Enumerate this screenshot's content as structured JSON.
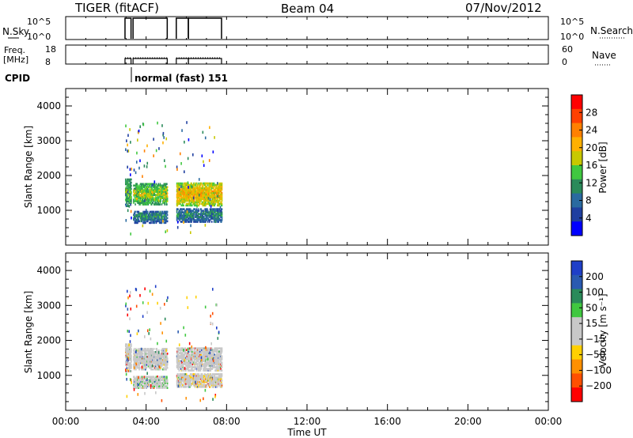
{
  "header": {
    "title": "TIGER (fitACF)",
    "beam": "Beam 04",
    "date": "07/Nov/2012"
  },
  "strips": {
    "nsky_label": "N.Sky",
    "nsky_ticks": [
      "10^5",
      "10^0"
    ],
    "nsearch_label": "N.Search",
    "freq_label_1": "Freq.",
    "freq_label_2": "[MHz]",
    "freq_ticks": [
      "18",
      "8"
    ],
    "nave_label": "Nave",
    "nave_ticks": [
      "60",
      "0"
    ],
    "cpid_label": "CPID",
    "cpid_text": "normal (fast) 151",
    "active_intervals_hours": [
      [
        2.95,
        3.25
      ],
      [
        3.35,
        5.05
      ],
      [
        5.5,
        6.1
      ],
      [
        6.1,
        7.75
      ]
    ]
  },
  "colorbars": {
    "power": {
      "label": "Power [dB]",
      "ticks": [
        "28",
        "24",
        "20",
        "16",
        "12",
        "8",
        "4"
      ],
      "colors": [
        "#ff0000",
        "#ff4000",
        "#ff8000",
        "#ffb000",
        "#c8c800",
        "#40c840",
        "#2a8a5a",
        "#2a6aa0",
        "#1f3fa0",
        "#0000ff"
      ]
    },
    "velocity": {
      "label": "Velocity [m s⁻¹]",
      "ticks": [
        "200",
        "100",
        "50",
        "15",
        "−15",
        "−50",
        "−100",
        "−200"
      ],
      "colors": [
        "#1f3fc8",
        "#2a5ab0",
        "#2a8a5a",
        "#40c840",
        "#c8c8c8",
        "#c8c8c8",
        "#ffd000",
        "#ff9000",
        "#ff5000",
        "#ff0000"
      ]
    }
  },
  "chart_data": [
    {
      "type": "heatmap",
      "title": "",
      "xlabel": "Time UT",
      "ylabel": "Slant Range [km]",
      "xlim_hours": [
        0,
        24
      ],
      "ylim": [
        0,
        4500
      ],
      "x_tick_labels": [
        "00:00",
        "04:00",
        "08:00",
        "12:00",
        "16:00",
        "20:00",
        "00:00"
      ],
      "y_tick_labels": [
        "1000",
        "2000",
        "3000",
        "4000"
      ],
      "variable": "Power [dB]",
      "scatter_bands": [
        {
          "t_start": 2.95,
          "t_end": 3.25,
          "r_center": 1550,
          "r_half": 400,
          "value": 12
        },
        {
          "t_start": 3.35,
          "t_end": 5.05,
          "r_center": 1500,
          "r_half": 300,
          "value": 14
        },
        {
          "t_start": 3.35,
          "t_end": 5.05,
          "r_center": 850,
          "r_half": 180,
          "value": 8
        },
        {
          "t_start": 5.5,
          "t_end": 7.75,
          "r_center": 1500,
          "r_half": 330,
          "value": 18
        },
        {
          "t_start": 5.5,
          "t_end": 7.75,
          "r_center": 900,
          "r_half": 200,
          "value": 8
        }
      ]
    },
    {
      "type": "heatmap",
      "title": "",
      "xlabel": "Time UT",
      "ylabel": "Slant Range [km]",
      "xlim_hours": [
        0,
        24
      ],
      "ylim": [
        0,
        4500
      ],
      "x_tick_labels": [
        "00:00",
        "04:00",
        "08:00",
        "12:00",
        "16:00",
        "20:00",
        "00:00"
      ],
      "y_tick_labels": [
        "1000",
        "2000",
        "3000",
        "4000"
      ],
      "variable": "Velocity [m s^-1]",
      "scatter_bands": [
        {
          "t_start": 2.95,
          "t_end": 3.25,
          "r_center": 1550,
          "r_half": 400,
          "value": 0
        },
        {
          "t_start": 3.35,
          "t_end": 5.05,
          "r_center": 1500,
          "r_half": 300,
          "value": 0
        },
        {
          "t_start": 3.35,
          "t_end": 5.05,
          "r_center": 850,
          "r_half": 180,
          "value": 20
        },
        {
          "t_start": 5.5,
          "t_end": 7.75,
          "r_center": 1500,
          "r_half": 330,
          "value": 0
        },
        {
          "t_start": 5.5,
          "t_end": 7.75,
          "r_center": 900,
          "r_half": 200,
          "value": -20
        }
      ]
    }
  ]
}
